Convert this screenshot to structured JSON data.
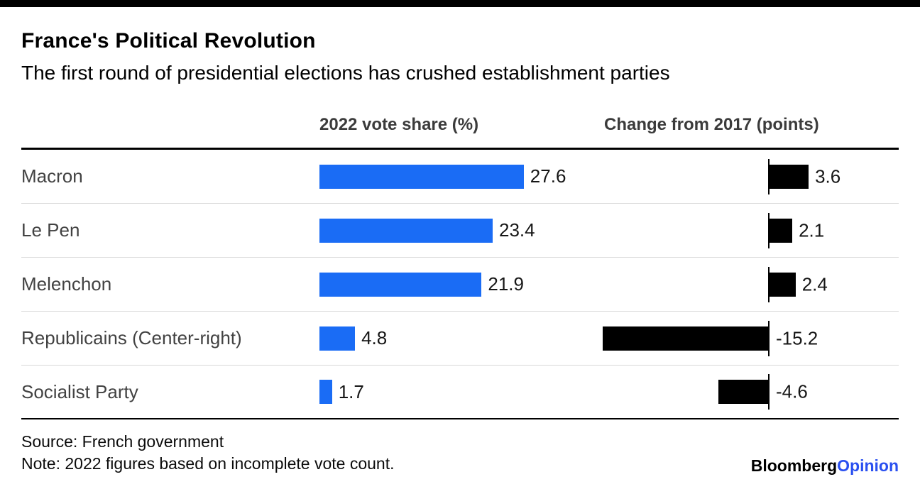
{
  "branding": {
    "logo_black": "Bloomberg",
    "logo_accent": "Opinion"
  },
  "colors": {
    "bar_blue": "#1a6cf5",
    "bar_black": "#000000",
    "logo_blue": "#2a50f0",
    "top_bar": "#000000"
  },
  "chart_data": {
    "type": "bar",
    "title": "France's Political Revolution",
    "subtitle": "The first round of presidential elections has crushed establishment parties",
    "categories": [
      "Macron",
      "Le Pen",
      "Melenchon",
      "Republicains (Center-right)",
      "Socialist Party"
    ],
    "series": [
      {
        "name": "2022 vote share (%)",
        "values": [
          27.6,
          23.4,
          21.9,
          4.8,
          1.7
        ],
        "color": "#1a6cf5",
        "axis": {
          "min": 0,
          "max": 28
        }
      },
      {
        "name": "Change from 2017 (points)",
        "values": [
          3.6,
          2.1,
          2.4,
          -15.2,
          -4.6
        ],
        "color": "#000000",
        "axis": {
          "min": -16,
          "max": 6
        },
        "baseline": 0
      }
    ],
    "grid": "off",
    "legend": "none",
    "value_labels": "on",
    "source": "Source: French government",
    "note": "Note: 2022 figures based on incomplete vote count."
  }
}
